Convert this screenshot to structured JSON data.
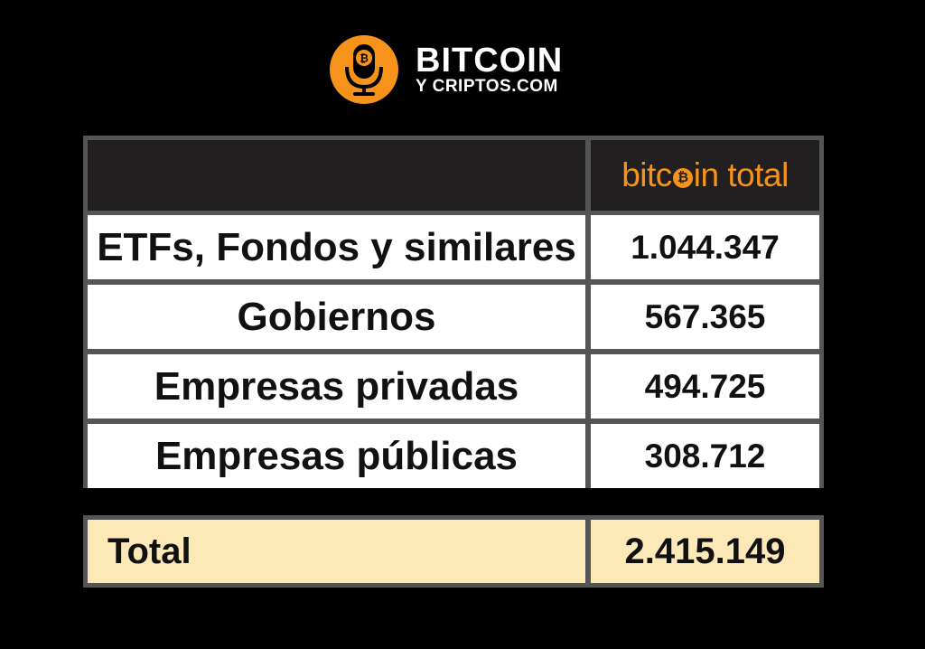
{
  "brand": {
    "line1": "BITCOIN",
    "line2": "Y CRIPTOS.COM",
    "icon": "microphone-bitcoin-icon",
    "accent_color": "#f7931a"
  },
  "chart_data": {
    "type": "table",
    "columns": [
      "",
      "bitcoin total"
    ],
    "rows": [
      {
        "label": "ETFs, Fondos y similares",
        "value": "1.044.347"
      },
      {
        "label": "Gobiernos",
        "value": "567.365"
      },
      {
        "label": "Empresas privadas",
        "value": "494.725"
      },
      {
        "label": "Empresas públicas",
        "value": "308.712"
      }
    ],
    "total": {
      "label": "Total",
      "value": "2.415.149"
    },
    "colors": {
      "background": "#000000",
      "header_bg": "#211f1f",
      "header_text": "#f7931a",
      "row_bg": "#ffffff",
      "total_bg": "#fde8b8",
      "grid": "#555555"
    }
  }
}
